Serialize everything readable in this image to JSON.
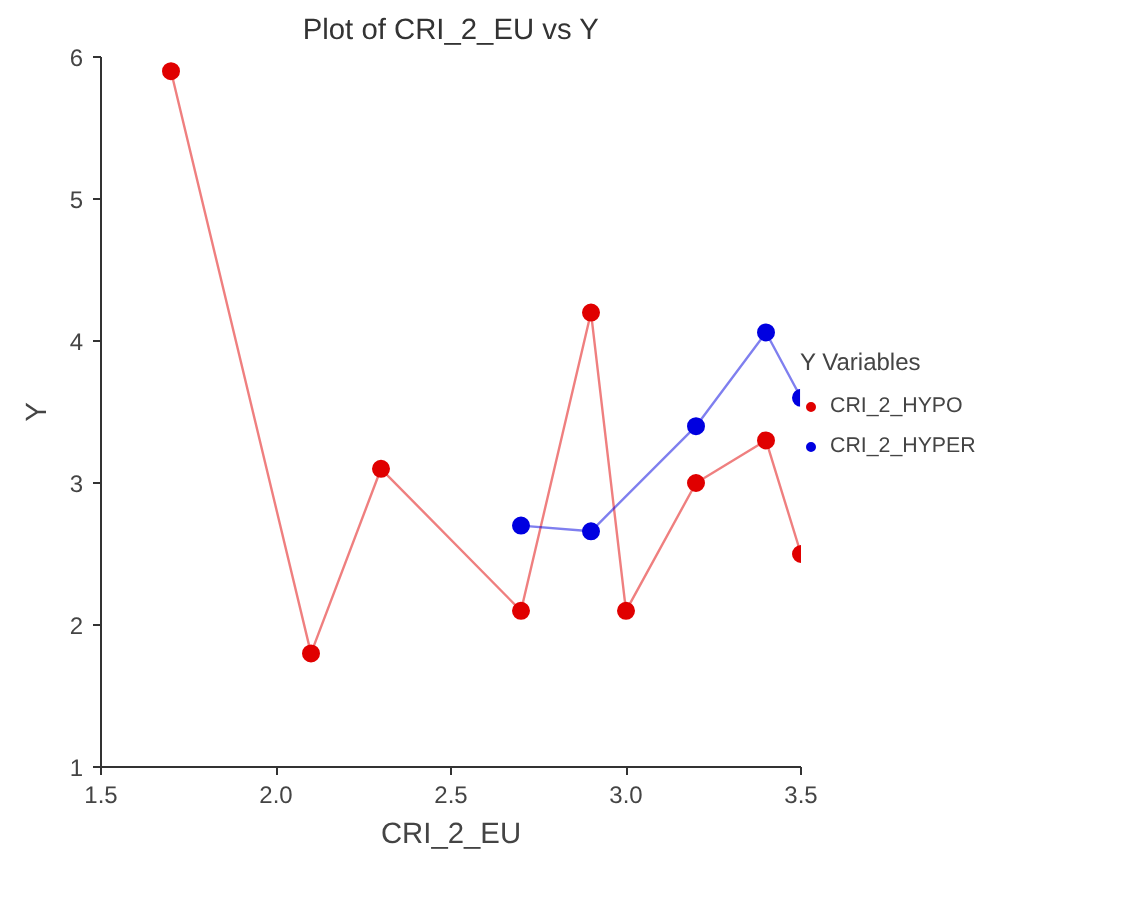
{
  "chart_data": {
    "type": "line",
    "title": "Plot of CRI_2_EU vs Y",
    "xlabel": "CRI_2_EU",
    "ylabel": "Y",
    "legend_title": "Y Variables",
    "legend": "right",
    "marker": "circle",
    "grid": false,
    "xlim": [
      1.5,
      3.5
    ],
    "xticks": [
      {
        "value": 1.5,
        "label": "1.5"
      },
      {
        "value": 2.0,
        "label": "2.0"
      },
      {
        "value": 2.5,
        "label": "2.5"
      },
      {
        "value": 3.0,
        "label": "3.0"
      },
      {
        "value": 3.5,
        "label": "3.5"
      }
    ],
    "ylim": [
      1,
      6
    ],
    "yticks": [
      1,
      2,
      3,
      4,
      5,
      6
    ],
    "series": [
      {
        "name": "CRI_2_HYPO",
        "color": "#e00000",
        "x": [
          1.7,
          2.1,
          2.3,
          2.7,
          2.9,
          3.0,
          3.2,
          3.4,
          3.5
        ],
        "values": [
          5.9,
          1.8,
          3.1,
          2.1,
          4.2,
          2.1,
          3.0,
          3.3,
          2.5
        ]
      },
      {
        "name": "CRI_2_HYPER",
        "color": "#0000e0",
        "x": [
          2.7,
          2.9,
          3.2,
          3.4,
          3.5
        ],
        "values": [
          2.7,
          2.66,
          3.4,
          4.06,
          3.6
        ]
      }
    ]
  }
}
